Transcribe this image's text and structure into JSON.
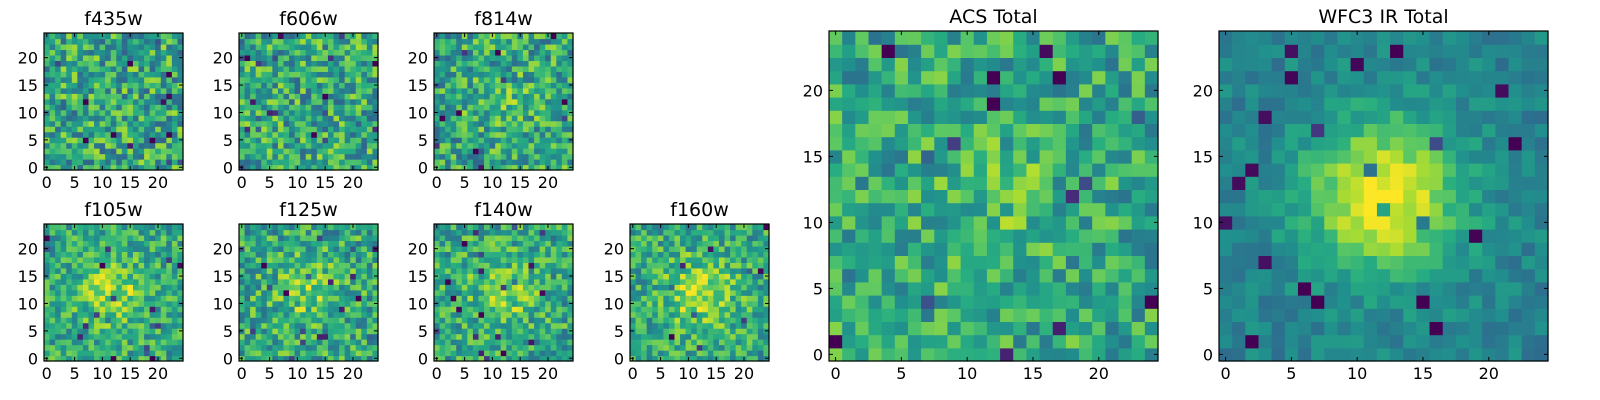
{
  "chart_data": [
    {
      "type": "heatmap",
      "title": "f435w",
      "shape": [
        25,
        25
      ],
      "colormap": "viridis",
      "pattern": "noise",
      "xticks": [
        "0",
        "5",
        "10",
        "15",
        "20"
      ],
      "yticks": [
        "0",
        "5",
        "10",
        "15",
        "20"
      ]
    },
    {
      "type": "heatmap",
      "title": "f606w",
      "shape": [
        25,
        25
      ],
      "colormap": "viridis",
      "pattern": "noise",
      "xticks": [
        "0",
        "5",
        "10",
        "15",
        "20"
      ],
      "yticks": [
        "0",
        "5",
        "10",
        "15",
        "20"
      ]
    },
    {
      "type": "heatmap",
      "title": "f814w",
      "shape": [
        25,
        25
      ],
      "colormap": "viridis",
      "pattern": "noise with faint central source",
      "xticks": [
        "0",
        "5",
        "10",
        "15",
        "20"
      ],
      "yticks": [
        "0",
        "5",
        "10",
        "15",
        "20"
      ]
    },
    {
      "type": "heatmap",
      "title": "f105w",
      "shape": [
        25,
        25
      ],
      "colormap": "viridis",
      "pattern": "central source",
      "xticks": [
        "0",
        "5",
        "10",
        "15",
        "20"
      ],
      "yticks": [
        "0",
        "5",
        "10",
        "15",
        "20"
      ]
    },
    {
      "type": "heatmap",
      "title": "f125w",
      "shape": [
        25,
        25
      ],
      "colormap": "viridis",
      "pattern": "noise with central source",
      "xticks": [
        "0",
        "5",
        "10",
        "15",
        "20"
      ],
      "yticks": [
        "0",
        "5",
        "10",
        "15",
        "20"
      ]
    },
    {
      "type": "heatmap",
      "title": "f140w",
      "shape": [
        25,
        25
      ],
      "colormap": "viridis",
      "pattern": "noise with central source",
      "xticks": [
        "0",
        "5",
        "10",
        "15",
        "20"
      ],
      "yticks": [
        "0",
        "5",
        "10",
        "15",
        "20"
      ]
    },
    {
      "type": "heatmap",
      "title": "f160w",
      "shape": [
        25,
        25
      ],
      "colormap": "viridis",
      "pattern": "central source",
      "xticks": [
        "0",
        "5",
        "10",
        "15",
        "20"
      ],
      "yticks": [
        "0",
        "5",
        "10",
        "15",
        "20"
      ]
    },
    {
      "type": "heatmap",
      "title": "ACS Total",
      "shape": [
        25,
        25
      ],
      "colormap": "viridis",
      "pattern": "noise with faint central source",
      "xticks": [
        "0",
        "5",
        "10",
        "15",
        "20"
      ],
      "yticks": [
        "0",
        "5",
        "10",
        "15",
        "20"
      ]
    },
    {
      "type": "heatmap",
      "title": "WFC3 IR Total",
      "shape": [
        25,
        25
      ],
      "colormap": "viridis",
      "pattern": "bright central source",
      "xticks": [
        "0",
        "5",
        "10",
        "15",
        "20"
      ],
      "yticks": [
        "0",
        "5",
        "10",
        "15",
        "20"
      ]
    }
  ]
}
